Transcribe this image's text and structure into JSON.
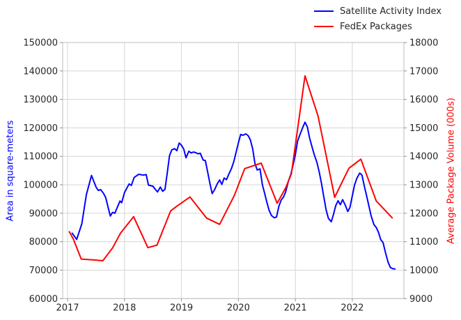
{
  "chart_data": {
    "type": "line",
    "title": "",
    "grid": true,
    "legend_position": "upper right",
    "x_axis": {
      "lim": [
        2016.914,
        2022.906
      ],
      "ticks": [
        2017,
        2018,
        2019,
        2020,
        2021,
        2022
      ]
    },
    "y_left": {
      "label": "Area in square-meters",
      "color": "#0000ff",
      "lim": [
        60000,
        150000
      ],
      "ticks": [
        60000,
        70000,
        80000,
        90000,
        100000,
        110000,
        120000,
        130000,
        140000,
        150000
      ]
    },
    "y_right": {
      "label": "Average Package Volume (000s)",
      "color": "#ff0000",
      "lim": [
        9000,
        18000
      ],
      "ticks": [
        9000,
        10000,
        11000,
        12000,
        13000,
        14000,
        15000,
        16000,
        17000,
        18000
      ]
    },
    "series": [
      {
        "name": "Satellite Activity Index",
        "axis": "left",
        "color": "#0000ff",
        "line_width": 2,
        "points": [
          [
            2017.08,
            83000
          ],
          [
            2017.16,
            80800
          ],
          [
            2017.25,
            86300
          ],
          [
            2017.33,
            96500
          ],
          [
            2017.42,
            103300
          ],
          [
            2017.5,
            99200
          ],
          [
            2017.54,
            98000
          ],
          [
            2017.58,
            98300
          ],
          [
            2017.63,
            97000
          ],
          [
            2017.67,
            95500
          ],
          [
            2017.75,
            89000
          ],
          [
            2017.79,
            90300
          ],
          [
            2017.83,
            90000
          ],
          [
            2017.92,
            94300
          ],
          [
            2017.95,
            93700
          ],
          [
            2018.0,
            97300
          ],
          [
            2018.08,
            100300
          ],
          [
            2018.12,
            99800
          ],
          [
            2018.17,
            102600
          ],
          [
            2018.25,
            103700
          ],
          [
            2018.33,
            103400
          ],
          [
            2018.38,
            103600
          ],
          [
            2018.42,
            99900
          ],
          [
            2018.5,
            99500
          ],
          [
            2018.54,
            98400
          ],
          [
            2018.58,
            97500
          ],
          [
            2018.63,
            99200
          ],
          [
            2018.67,
            97700
          ],
          [
            2018.71,
            98400
          ],
          [
            2018.75,
            104000
          ],
          [
            2018.79,
            110200
          ],
          [
            2018.83,
            112300
          ],
          [
            2018.88,
            112700
          ],
          [
            2018.92,
            112000
          ],
          [
            2018.96,
            114700
          ],
          [
            2019.0,
            113900
          ],
          [
            2019.04,
            112500
          ],
          [
            2019.08,
            109500
          ],
          [
            2019.13,
            111800
          ],
          [
            2019.17,
            111200
          ],
          [
            2019.21,
            111500
          ],
          [
            2019.25,
            111300
          ],
          [
            2019.29,
            110900
          ],
          [
            2019.33,
            111100
          ],
          [
            2019.38,
            108700
          ],
          [
            2019.42,
            108500
          ],
          [
            2019.46,
            104500
          ],
          [
            2019.5,
            100400
          ],
          [
            2019.54,
            96900
          ],
          [
            2019.58,
            98200
          ],
          [
            2019.63,
            100400
          ],
          [
            2019.67,
            101700
          ],
          [
            2019.71,
            100100
          ],
          [
            2019.75,
            102400
          ],
          [
            2019.79,
            101800
          ],
          [
            2019.83,
            103700
          ],
          [
            2019.88,
            105800
          ],
          [
            2019.92,
            108200
          ],
          [
            2019.96,
            111500
          ],
          [
            2020.0,
            114800
          ],
          [
            2020.04,
            117700
          ],
          [
            2020.08,
            117400
          ],
          [
            2020.13,
            117900
          ],
          [
            2020.17,
            117300
          ],
          [
            2020.21,
            115800
          ],
          [
            2020.25,
            112700
          ],
          [
            2020.29,
            107500
          ],
          [
            2020.33,
            105200
          ],
          [
            2020.38,
            105600
          ],
          [
            2020.42,
            100100
          ],
          [
            2020.46,
            97000
          ],
          [
            2020.5,
            93900
          ],
          [
            2020.54,
            91000
          ],
          [
            2020.58,
            89200
          ],
          [
            2020.63,
            88400
          ],
          [
            2020.67,
            88700
          ],
          [
            2020.71,
            92400
          ],
          [
            2020.75,
            94600
          ],
          [
            2020.79,
            95700
          ],
          [
            2020.83,
            97500
          ],
          [
            2020.88,
            101400
          ],
          [
            2020.92,
            103600
          ],
          [
            2020.96,
            107000
          ],
          [
            2021.0,
            110500
          ],
          [
            2021.04,
            115400
          ],
          [
            2021.08,
            117600
          ],
          [
            2021.13,
            120200
          ],
          [
            2021.17,
            122000
          ],
          [
            2021.21,
            120400
          ],
          [
            2021.25,
            116400
          ],
          [
            2021.29,
            113500
          ],
          [
            2021.33,
            110700
          ],
          [
            2021.38,
            107800
          ],
          [
            2021.42,
            104400
          ],
          [
            2021.46,
            100300
          ],
          [
            2021.5,
            95700
          ],
          [
            2021.54,
            91200
          ],
          [
            2021.58,
            88200
          ],
          [
            2021.63,
            87000
          ],
          [
            2021.67,
            89600
          ],
          [
            2021.71,
            92700
          ],
          [
            2021.75,
            94400
          ],
          [
            2021.79,
            93000
          ],
          [
            2021.83,
            94800
          ],
          [
            2021.88,
            92700
          ],
          [
            2021.92,
            90600
          ],
          [
            2021.96,
            92100
          ],
          [
            2022.0,
            96100
          ],
          [
            2022.04,
            100000
          ],
          [
            2022.08,
            102300
          ],
          [
            2022.13,
            104100
          ],
          [
            2022.17,
            103400
          ],
          [
            2022.21,
            99600
          ],
          [
            2022.25,
            96200
          ],
          [
            2022.29,
            92700
          ],
          [
            2022.33,
            89100
          ],
          [
            2022.38,
            86000
          ],
          [
            2022.42,
            85000
          ],
          [
            2022.46,
            83300
          ],
          [
            2022.5,
            80700
          ],
          [
            2022.54,
            79700
          ],
          [
            2022.58,
            76400
          ],
          [
            2022.63,
            72700
          ],
          [
            2022.67,
            70900
          ],
          [
            2022.71,
            70500
          ],
          [
            2022.75,
            70400
          ]
        ]
      },
      {
        "name": "FedEx Packages",
        "axis": "right",
        "color": "#ff0000",
        "line_width": 2,
        "points": [
          [
            2017.03,
            11350
          ],
          [
            2017.1,
            11100
          ],
          [
            2017.24,
            10390
          ],
          [
            2017.45,
            10360
          ],
          [
            2017.62,
            10330
          ],
          [
            2017.79,
            10780
          ],
          [
            2017.93,
            11300
          ],
          [
            2018.16,
            11880
          ],
          [
            2018.41,
            10790
          ],
          [
            2018.57,
            10880
          ],
          [
            2018.81,
            12080
          ],
          [
            2018.92,
            12250
          ],
          [
            2019.15,
            12570
          ],
          [
            2019.44,
            11830
          ],
          [
            2019.67,
            11610
          ],
          [
            2019.93,
            12630
          ],
          [
            2020.11,
            13570
          ],
          [
            2020.4,
            13760
          ],
          [
            2020.68,
            12350
          ],
          [
            2020.83,
            12890
          ],
          [
            2020.93,
            13380
          ],
          [
            2021.17,
            16830
          ],
          [
            2021.4,
            15410
          ],
          [
            2021.69,
            12560
          ],
          [
            2021.94,
            13580
          ],
          [
            2022.15,
            13900
          ],
          [
            2022.42,
            12430
          ],
          [
            2022.7,
            11840
          ]
        ]
      }
    ]
  },
  "style": {
    "grid_color": "#d5d5d5",
    "spine_color": "#c7c7c7",
    "tick_color": "#8f8f8f",
    "tick_label_color": "#262626",
    "background": "#ffffff"
  }
}
